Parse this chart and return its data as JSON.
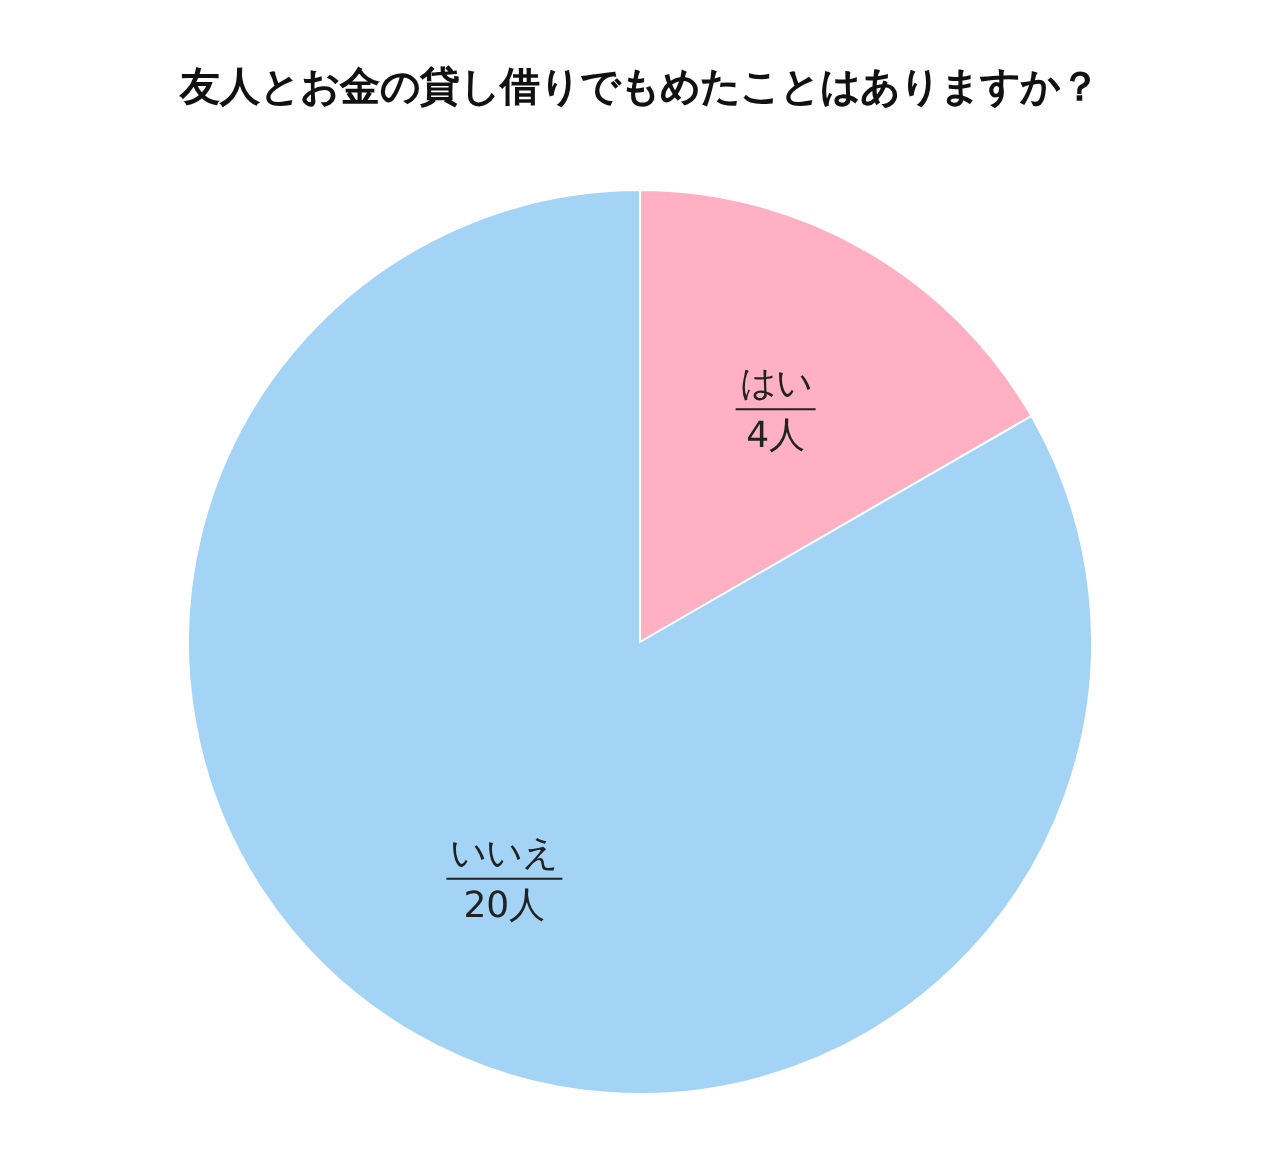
{
  "chart_data": {
    "type": "pie",
    "title": "友人とお金の貸し借りでもめたことはありますか？",
    "categories": [
      "はい",
      "いいえ"
    ],
    "values": [
      4,
      20
    ],
    "colors": [
      "#ffb0c3",
      "#a3d3f5"
    ],
    "value_labels": [
      "4人",
      "20人"
    ]
  }
}
